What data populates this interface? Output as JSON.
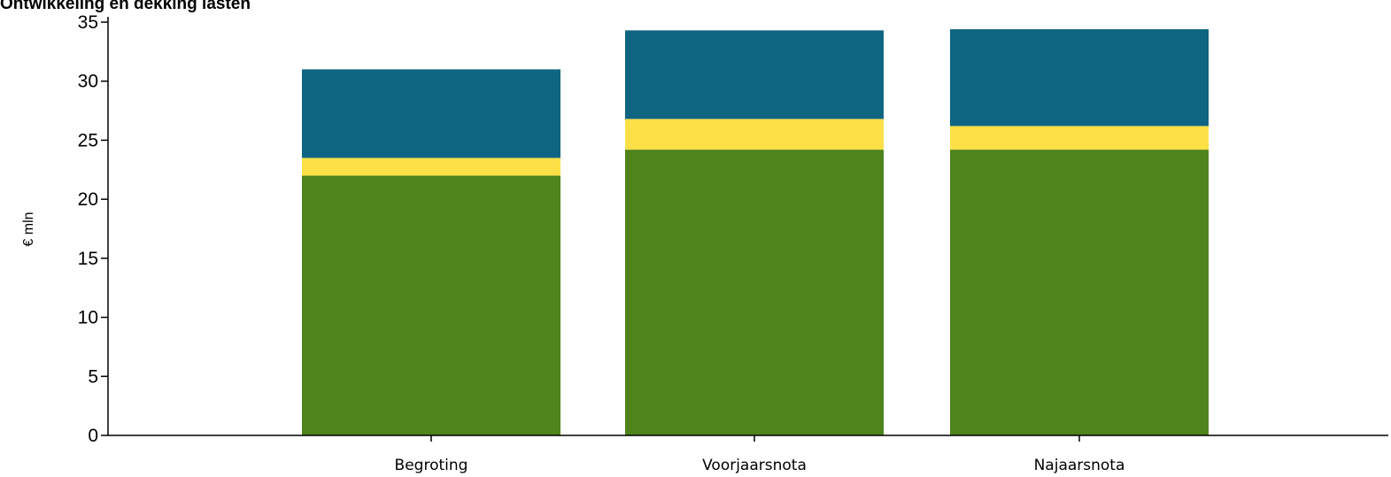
{
  "chart_data": {
    "type": "bar",
    "stacked": true,
    "title": "Ontwikkeling en dekking lasten",
    "ylabel": "€ mln",
    "xlabel": "",
    "ylim": [
      0,
      35
    ],
    "yticks": [
      0,
      5,
      10,
      15,
      20,
      25,
      30,
      35
    ],
    "categories": [
      "Begroting",
      "Voorjaarsnota",
      "Najaarsnota"
    ],
    "series": [
      {
        "color": "#4f831b",
        "values": [
          22.0,
          24.2,
          24.2
        ]
      },
      {
        "color": "#fde047",
        "values": [
          1.5,
          2.6,
          2.0
        ]
      },
      {
        "color": "#0e6582",
        "values": [
          7.5,
          7.5,
          8.2
        ]
      }
    ],
    "grid": false,
    "legend": "none"
  }
}
